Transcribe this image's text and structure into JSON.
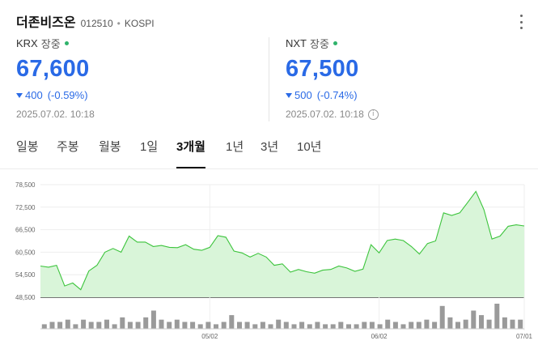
{
  "header": {
    "name": "더존비즈온",
    "code": "012510",
    "separator": "•",
    "market": "KOSPI"
  },
  "krx": {
    "exchange": "KRX",
    "status": "장중",
    "price": "67,600",
    "change": "400",
    "change_pct": "(-0.59%)",
    "timestamp": "2025.07.02. 10:18"
  },
  "nxt": {
    "exchange": "NXT",
    "status": "장중",
    "price": "67,500",
    "change": "500",
    "change_pct": "(-0.74%)",
    "timestamp": "2025.07.02. 10:18",
    "info_icon": "i"
  },
  "tabs": [
    {
      "label": "일봉",
      "active": false
    },
    {
      "label": "주봉",
      "active": false
    },
    {
      "label": "월봉",
      "active": false
    },
    {
      "label": "1일",
      "active": false
    },
    {
      "label": "3개월",
      "active": true
    },
    {
      "label": "1년",
      "active": false
    },
    {
      "label": "3년",
      "active": false
    },
    {
      "label": "10년",
      "active": false
    }
  ],
  "colors": {
    "accent_blue": "#2a6ae6",
    "live_green": "#2fb36b",
    "line_green": "#3cc43c",
    "fill_green": "#d9f5d9",
    "volume_gray": "#9a9a9a"
  },
  "chart_data": {
    "type": "area",
    "y_ticks": [
      "78,500",
      "72,500",
      "66,500",
      "60,500",
      "54,500",
      "48,500"
    ],
    "ylim": [
      48500,
      78500
    ],
    "x_tick_labels": [
      "05/02",
      "06/02",
      "07/01"
    ],
    "x_tick_index": [
      21,
      42,
      62
    ],
    "grid": true,
    "series": [
      {
        "values": [
          56800,
          56500,
          57000,
          51500,
          52300,
          50500,
          55500,
          57000,
          60500,
          61500,
          60500,
          64800,
          63200,
          63200,
          62000,
          62300,
          61800,
          61700,
          62500,
          61300,
          61000,
          61800,
          64900,
          64500,
          60800,
          60300,
          59200,
          60200,
          59200,
          57000,
          57400,
          55200,
          55900,
          55300,
          54900,
          55700,
          55900,
          56800,
          56300,
          55400,
          56000,
          62500,
          60300,
          63600,
          64000,
          63600,
          62000,
          60000,
          62800,
          63500,
          71000,
          70300,
          71000,
          73800,
          76700,
          71800,
          64000,
          64800,
          67400,
          67800,
          67500
        ]
      }
    ],
    "volume": [
      2,
      3,
      3,
      4,
      2,
      4,
      3,
      3,
      4,
      2,
      5,
      3,
      3,
      5,
      8,
      4,
      3,
      4,
      3,
      3,
      2,
      3,
      2,
      3,
      6,
      3,
      3,
      2,
      3,
      2,
      4,
      3,
      2,
      3,
      2,
      3,
      2,
      2,
      3,
      2,
      2,
      3,
      3,
      2,
      4,
      3,
      2,
      3,
      3,
      4,
      3,
      10,
      5,
      3,
      4,
      8,
      6,
      4,
      11,
      5,
      4,
      4
    ]
  }
}
